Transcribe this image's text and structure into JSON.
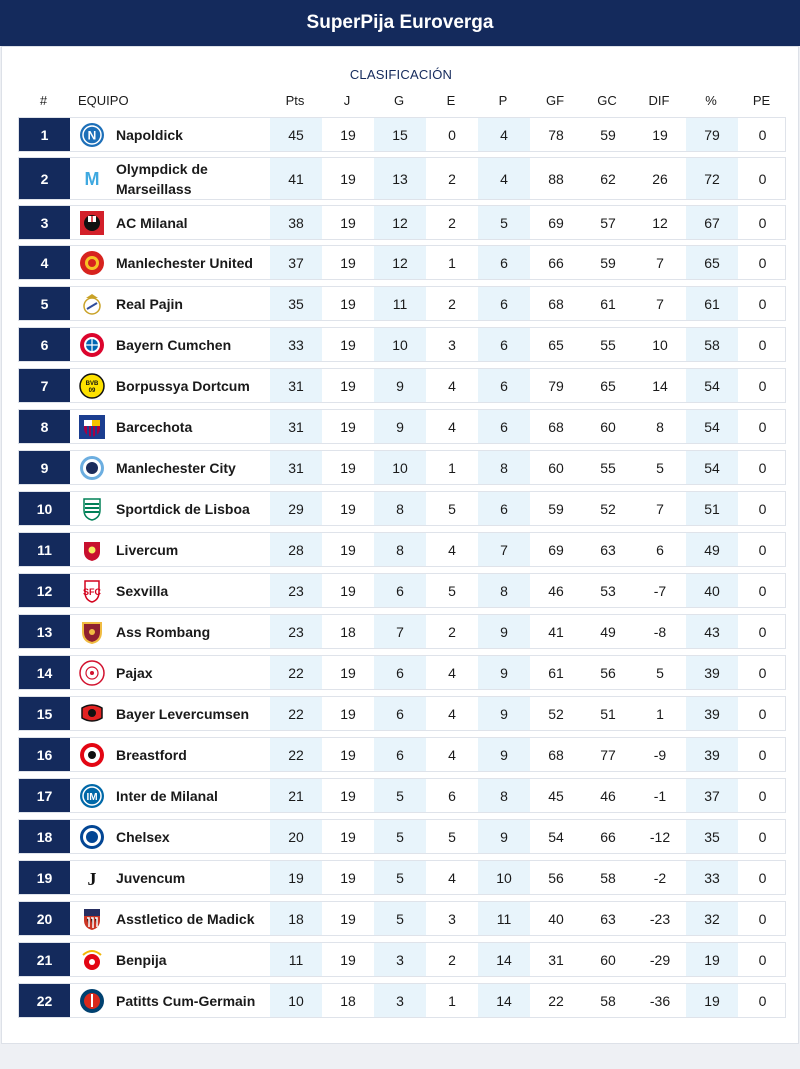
{
  "app": {
    "title": "SuperPija Euroverga"
  },
  "standings": {
    "title": "CLASIFICACIÓN",
    "columns": [
      "#",
      "EQUIPO",
      "Pts",
      "J",
      "G",
      "E",
      "P",
      "GF",
      "GC",
      "DIF",
      "%",
      "PE"
    ],
    "rows": [
      {
        "pos": "1",
        "team": "Napoldick",
        "logo": "napoli-crest-icon",
        "pts": "45",
        "j": "19",
        "g": "15",
        "e": "0",
        "p": "4",
        "gf": "78",
        "gc": "59",
        "dif": "19",
        "pct": "79",
        "pe": "0"
      },
      {
        "pos": "2",
        "team": "Olympdick de Marseillass",
        "logo": "marseille-crest-icon",
        "pts": "41",
        "j": "19",
        "g": "13",
        "e": "2",
        "p": "4",
        "gf": "88",
        "gc": "62",
        "dif": "26",
        "pct": "72",
        "pe": "0"
      },
      {
        "pos": "3",
        "team": "AC Milanal",
        "logo": "milan-crest-icon",
        "pts": "38",
        "j": "19",
        "g": "12",
        "e": "2",
        "p": "5",
        "gf": "69",
        "gc": "57",
        "dif": "12",
        "pct": "67",
        "pe": "0"
      },
      {
        "pos": "4",
        "team": "Manlechester United",
        "logo": "man-united-crest-icon",
        "pts": "37",
        "j": "19",
        "g": "12",
        "e": "1",
        "p": "6",
        "gf": "66",
        "gc": "59",
        "dif": "7",
        "pct": "65",
        "pe": "0"
      },
      {
        "pos": "5",
        "team": "Real Pajin",
        "logo": "real-madrid-crest-icon",
        "pts": "35",
        "j": "19",
        "g": "11",
        "e": "2",
        "p": "6",
        "gf": "68",
        "gc": "61",
        "dif": "7",
        "pct": "61",
        "pe": "0"
      },
      {
        "pos": "6",
        "team": "Bayern Cumchen",
        "logo": "bayern-crest-icon",
        "pts": "33",
        "j": "19",
        "g": "10",
        "e": "3",
        "p": "6",
        "gf": "65",
        "gc": "55",
        "dif": "10",
        "pct": "58",
        "pe": "0"
      },
      {
        "pos": "7",
        "team": "Borpussya Dortcum",
        "logo": "dortmund-crest-icon",
        "pts": "31",
        "j": "19",
        "g": "9",
        "e": "4",
        "p": "6",
        "gf": "79",
        "gc": "65",
        "dif": "14",
        "pct": "54",
        "pe": "0"
      },
      {
        "pos": "8",
        "team": "Barcechota",
        "logo": "barcelona-crest-icon",
        "pts": "31",
        "j": "19",
        "g": "9",
        "e": "4",
        "p": "6",
        "gf": "68",
        "gc": "60",
        "dif": "8",
        "pct": "54",
        "pe": "0"
      },
      {
        "pos": "9",
        "team": "Manlechester City",
        "logo": "man-city-crest-icon",
        "pts": "31",
        "j": "19",
        "g": "10",
        "e": "1",
        "p": "8",
        "gf": "60",
        "gc": "55",
        "dif": "5",
        "pct": "54",
        "pe": "0"
      },
      {
        "pos": "10",
        "team": "Sportdick de Lisboa",
        "logo": "sporting-crest-icon",
        "pts": "29",
        "j": "19",
        "g": "8",
        "e": "5",
        "p": "6",
        "gf": "59",
        "gc": "52",
        "dif": "7",
        "pct": "51",
        "pe": "0"
      },
      {
        "pos": "11",
        "team": "Livercum",
        "logo": "liverpool-crest-icon",
        "pts": "28",
        "j": "19",
        "g": "8",
        "e": "4",
        "p": "7",
        "gf": "69",
        "gc": "63",
        "dif": "6",
        "pct": "49",
        "pe": "0"
      },
      {
        "pos": "12",
        "team": "Sexvilla",
        "logo": "sevilla-crest-icon",
        "pts": "23",
        "j": "19",
        "g": "6",
        "e": "5",
        "p": "8",
        "gf": "46",
        "gc": "53",
        "dif": "-7",
        "pct": "40",
        "pe": "0"
      },
      {
        "pos": "13",
        "team": "Ass Rombang",
        "logo": "roma-crest-icon",
        "pts": "23",
        "j": "18",
        "g": "7",
        "e": "2",
        "p": "9",
        "gf": "41",
        "gc": "49",
        "dif": "-8",
        "pct": "43",
        "pe": "0"
      },
      {
        "pos": "14",
        "team": "Pajax",
        "logo": "ajax-crest-icon",
        "pts": "22",
        "j": "19",
        "g": "6",
        "e": "4",
        "p": "9",
        "gf": "61",
        "gc": "56",
        "dif": "5",
        "pct": "39",
        "pe": "0"
      },
      {
        "pos": "15",
        "team": "Bayer Levercumsen",
        "logo": "leverkusen-crest-icon",
        "pts": "22",
        "j": "19",
        "g": "6",
        "e": "4",
        "p": "9",
        "gf": "52",
        "gc": "51",
        "dif": "1",
        "pct": "39",
        "pe": "0"
      },
      {
        "pos": "16",
        "team": "Breastford",
        "logo": "brentford-crest-icon",
        "pts": "22",
        "j": "19",
        "g": "6",
        "e": "4",
        "p": "9",
        "gf": "68",
        "gc": "77",
        "dif": "-9",
        "pct": "39",
        "pe": "0"
      },
      {
        "pos": "17",
        "team": "Inter de Milanal",
        "logo": "inter-crest-icon",
        "pts": "21",
        "j": "19",
        "g": "5",
        "e": "6",
        "p": "8",
        "gf": "45",
        "gc": "46",
        "dif": "-1",
        "pct": "37",
        "pe": "0"
      },
      {
        "pos": "18",
        "team": "Chelsex",
        "logo": "chelsea-crest-icon",
        "pts": "20",
        "j": "19",
        "g": "5",
        "e": "5",
        "p": "9",
        "gf": "54",
        "gc": "66",
        "dif": "-12",
        "pct": "35",
        "pe": "0"
      },
      {
        "pos": "19",
        "team": "Juvencum",
        "logo": "juventus-crest-icon",
        "pts": "19",
        "j": "19",
        "g": "5",
        "e": "4",
        "p": "10",
        "gf": "56",
        "gc": "58",
        "dif": "-2",
        "pct": "33",
        "pe": "0"
      },
      {
        "pos": "20",
        "team": "Asstletico de Madick",
        "logo": "atletico-crest-icon",
        "pts": "18",
        "j": "19",
        "g": "5",
        "e": "3",
        "p": "11",
        "gf": "40",
        "gc": "63",
        "dif": "-23",
        "pct": "32",
        "pe": "0"
      },
      {
        "pos": "21",
        "team": "Benpija",
        "logo": "benfica-crest-icon",
        "pts": "11",
        "j": "19",
        "g": "3",
        "e": "2",
        "p": "14",
        "gf": "31",
        "gc": "60",
        "dif": "-29",
        "pct": "19",
        "pe": "0"
      },
      {
        "pos": "22",
        "team": "Patitts Cum-Germain",
        "logo": "psg-crest-icon",
        "pts": "10",
        "j": "18",
        "g": "3",
        "e": "1",
        "p": "14",
        "gf": "22",
        "gc": "58",
        "dif": "-36",
        "pct": "19",
        "pe": "0"
      }
    ]
  },
  "colors": {
    "header_bg": "#142a5c",
    "shade": "#e8f4fb"
  }
}
